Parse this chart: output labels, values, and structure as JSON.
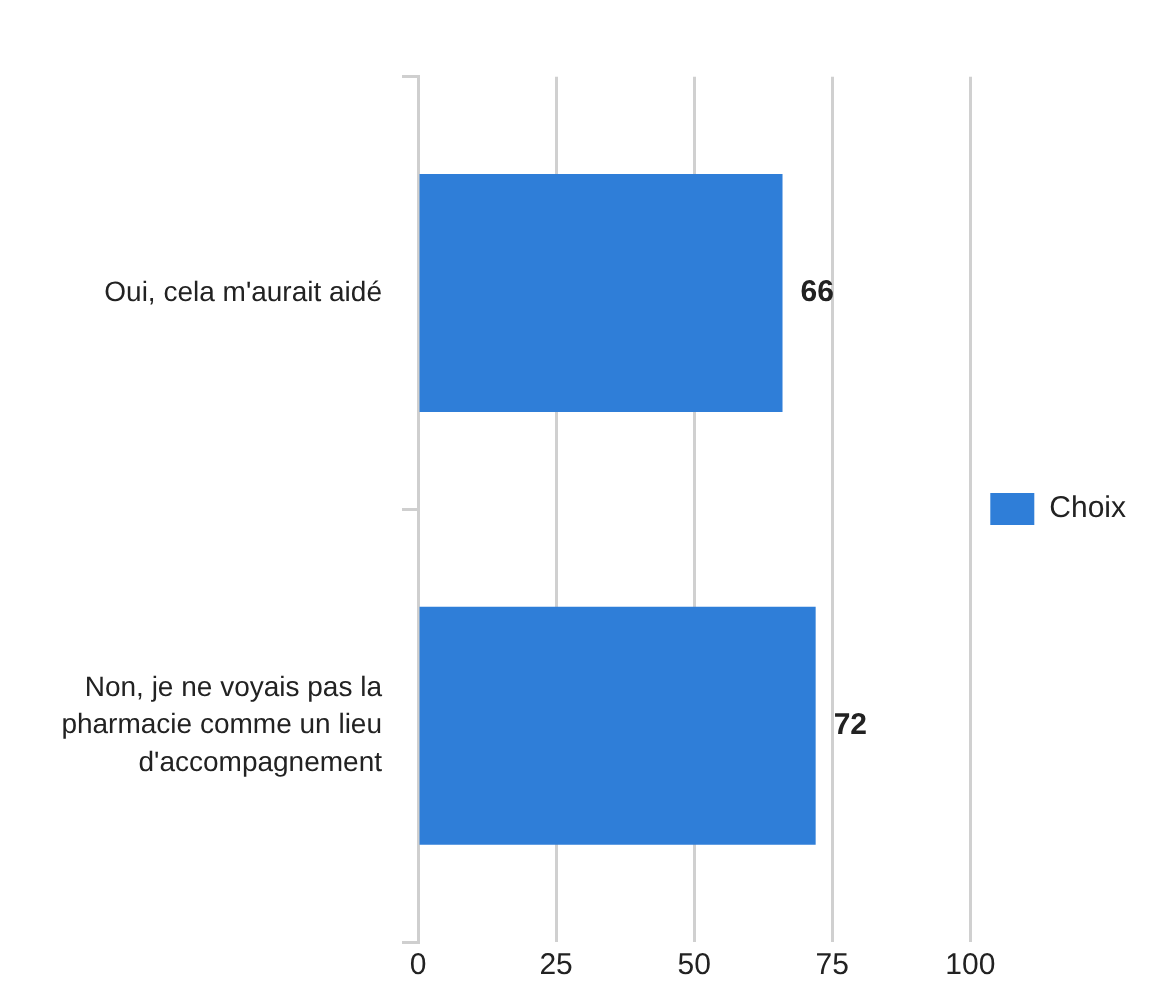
{
  "chart_data": {
    "type": "bar",
    "orientation": "horizontal",
    "categories": [
      "Oui, cela m'aurait aidé",
      "Non, je ne voyais pas la pharmacie comme un lieu d'accompagnement"
    ],
    "series": [
      {
        "name": "Choix",
        "color": "#2f7ed8",
        "values": [
          66,
          72
        ]
      }
    ],
    "xlim": [
      0,
      100
    ],
    "xticks": [
      0,
      25,
      50,
      75,
      100
    ],
    "grid": "x",
    "legend": "right",
    "data_labels": true
  }
}
